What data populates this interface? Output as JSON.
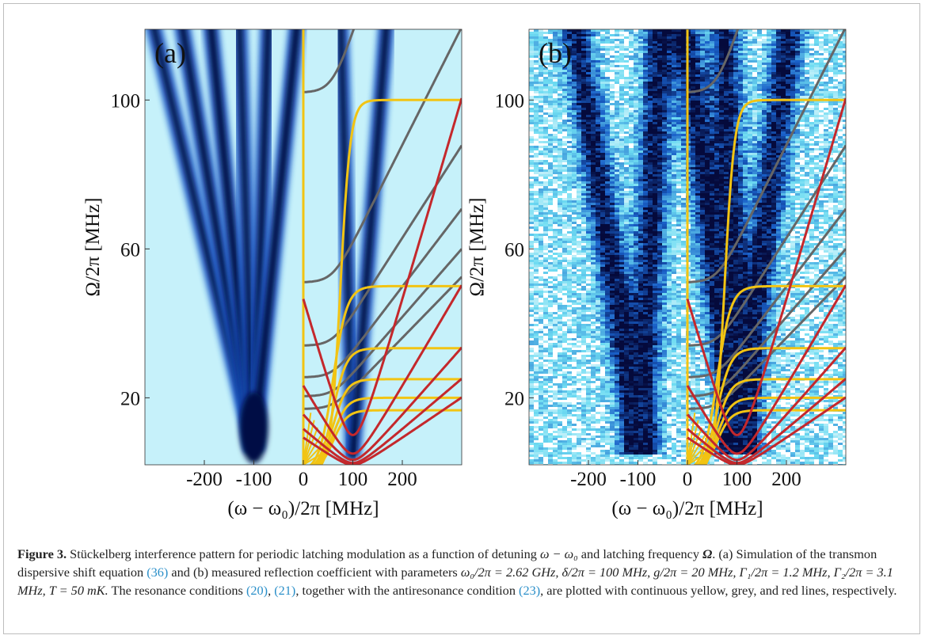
{
  "figure": {
    "panels": [
      {
        "label": "(a)",
        "xlabel": "(ω − ω₀)/2π [MHz]",
        "ylabel": "Ω/2π [MHz]",
        "xlim": [
          -320,
          320
        ],
        "ylim": [
          2,
          119
        ],
        "xticks": [
          -200,
          -100,
          0,
          100,
          200
        ],
        "yticks": [
          20,
          60,
          100
        ]
      },
      {
        "label": "(b)",
        "xlabel": "(ω − ω₀)/2π [MHz]",
        "ylabel": "Ω/2π [MHz]",
        "xlim": [
          -320,
          320
        ],
        "ylim": [
          2,
          119
        ],
        "xticks": [
          -200,
          -100,
          0,
          100,
          200
        ],
        "yticks": [
          20,
          60,
          100
        ]
      }
    ]
  },
  "caption": {
    "parts": [
      "Figure 3.",
      " Stückelberg interference pattern for periodic latching modulation as a function of detuning ",
      "ω − ω₀",
      " and latching frequency ",
      "Ω",
      ". (a) Simulation of the transmon dispersive shift equation ",
      "(36)",
      " and (b) measured reflection coefficient with parameters ",
      "ω₀/2π = 2.62 GHz, δ/2π = 100 MHz, g/2π = 20 MHz, Γ₁/2π = 1.2 MHz, Γ₂/2π = 3.1 MHz, T = 50 mK.",
      " The resonance conditions ",
      "(20)",
      ", ",
      "(21)",
      ", together with the antiresonance condition ",
      "(23)",
      ", are plotted with continuous yellow, grey, and red lines, respectively."
    ]
  }
}
